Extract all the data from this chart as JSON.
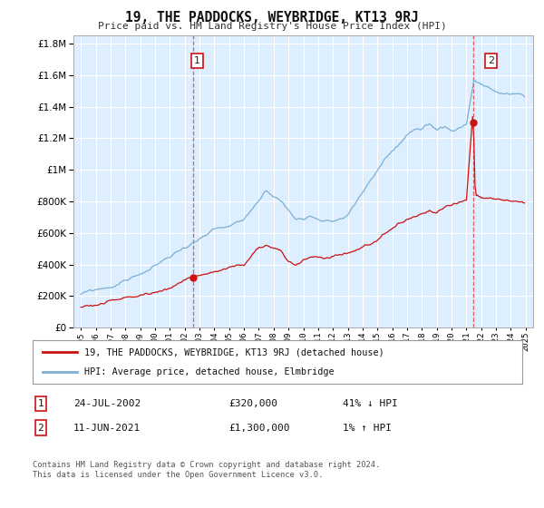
{
  "title": "19, THE PADDOCKS, WEYBRIDGE, KT13 9RJ",
  "subtitle": "Price paid vs. HM Land Registry's House Price Index (HPI)",
  "ytick_values": [
    0,
    200000,
    400000,
    600000,
    800000,
    1000000,
    1200000,
    1400000,
    1600000,
    1800000
  ],
  "ylim": [
    0,
    1850000
  ],
  "xlim_start": 1994.5,
  "xlim_end": 2025.5,
  "hpi_color": "#7bafd4",
  "price_color": "#cc1111",
  "dashed_color": "#dd4444",
  "marker1_x": 2002.56,
  "marker1_y": 320000,
  "marker2_x": 2021.45,
  "marker2_y": 1300000,
  "marker1_label": "1",
  "marker2_label": "2",
  "legend_line1": "19, THE PADDOCKS, WEYBRIDGE, KT13 9RJ (detached house)",
  "legend_line2": "HPI: Average price, detached house, Elmbridge",
  "table_row1": [
    "1",
    "24-JUL-2002",
    "£320,000",
    "41% ↓ HPI"
  ],
  "table_row2": [
    "2",
    "11-JUN-2021",
    "£1,300,000",
    "1% ↑ HPI"
  ],
  "footer": "Contains HM Land Registry data © Crown copyright and database right 2024.\nThis data is licensed under the Open Government Licence v3.0.",
  "background_color": "#ffffff",
  "plot_bg_color": "#ddeeff",
  "grid_color": "#ffffff"
}
